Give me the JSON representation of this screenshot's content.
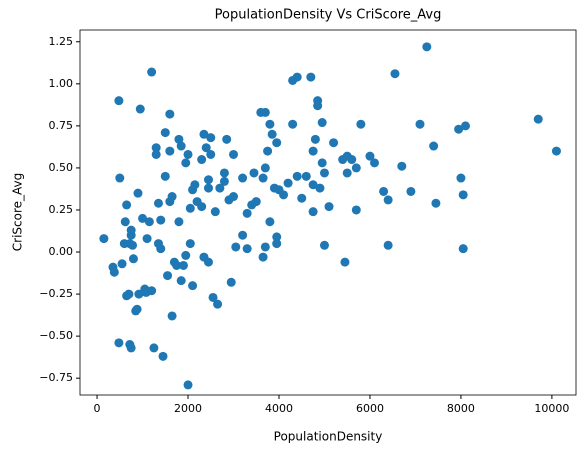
{
  "chart_data": {
    "type": "scatter",
    "title": "PopulationDensity Vs CriScore_Avg",
    "x_label": "PopulationDensity",
    "y_label": "CriScore_Avg",
    "color": "#1f77b4",
    "xlim": [
      -375,
      10530
    ],
    "ylim": [
      -0.85,
      1.32
    ],
    "xticks": [
      0,
      2000,
      4000,
      6000,
      8000,
      10000
    ],
    "yticks": [
      {
        "value": -0.75,
        "label": "−0.75"
      },
      {
        "value": -0.5,
        "label": "−0.50"
      },
      {
        "value": -0.25,
        "label": "−0.25"
      },
      {
        "value": 0,
        "label": "0.00"
      },
      {
        "value": 0.25,
        "label": "0.25"
      },
      {
        "value": 0.5,
        "label": "0.50"
      },
      {
        "value": 0.75,
        "label": "0.75"
      },
      {
        "value": 1,
        "label": "1.00"
      },
      {
        "value": 1.25,
        "label": "1.25"
      }
    ],
    "x": [
      150,
      350,
      380,
      480,
      500,
      480,
      550,
      600,
      620,
      650,
      650,
      700,
      720,
      750,
      750,
      780,
      720,
      750,
      800,
      850,
      880,
      900,
      920,
      950,
      1000,
      1050,
      1080,
      1100,
      1150,
      1200,
      1200,
      1250,
      1300,
      1300,
      1350,
      1350,
      1400,
      1400,
      1450,
      1500,
      1500,
      1550,
      1600,
      1600,
      1600,
      1650,
      1650,
      1700,
      1750,
      1800,
      1800,
      1850,
      1850,
      1900,
      1950,
      1950,
      2000,
      2000,
      2050,
      2050,
      2100,
      2100,
      2150,
      2200,
      2300,
      2300,
      2350,
      2350,
      2400,
      2450,
      2450,
      2450,
      2500,
      2500,
      2550,
      2600,
      2650,
      2700,
      2800,
      2800,
      2850,
      2900,
      2950,
      3000,
      3000,
      3050,
      3200,
      3200,
      3300,
      3300,
      3400,
      3450,
      3500,
      3600,
      3650,
      3650,
      3700,
      3700,
      3700,
      3750,
      3800,
      3800,
      3850,
      3900,
      3950,
      3950,
      3950,
      4000,
      4100,
      4200,
      4300,
      4300,
      4400,
      4400,
      4500,
      4600,
      4700,
      4750,
      4750,
      4750,
      4800,
      4850,
      4850,
      4900,
      4950,
      4950,
      5000,
      5000,
      5100,
      5200,
      5400,
      5450,
      5500,
      5500,
      5600,
      5700,
      5700,
      5800,
      6000,
      6100,
      6300,
      6400,
      6400,
      6550,
      6700,
      6900,
      7100,
      7250,
      7400,
      7450,
      7950,
      8000,
      8050,
      8050,
      8100,
      9700,
      10100
    ],
    "values": [
      0.08,
      -0.09,
      -0.12,
      0.9,
      0.44,
      -0.54,
      -0.07,
      0.05,
      0.18,
      0.28,
      -0.26,
      -0.25,
      0.05,
      0.1,
      0.13,
      0.04,
      -0.55,
      -0.57,
      -0.04,
      -0.35,
      -0.34,
      0.35,
      -0.25,
      0.85,
      0.2,
      -0.22,
      -0.24,
      0.08,
      0.18,
      1.07,
      -0.23,
      -0.57,
      0.62,
      0.58,
      0.05,
      0.29,
      0.19,
      0.02,
      -0.62,
      0.45,
      0.71,
      -0.14,
      0.82,
      0.6,
      0.3,
      -0.38,
      0.33,
      -0.06,
      -0.08,
      0.18,
      0.67,
      0.63,
      -0.17,
      -0.08,
      0.53,
      -0.02,
      -0.79,
      0.58,
      0.26,
      0.05,
      -0.2,
      0.37,
      0.4,
      0.3,
      0.27,
      0.55,
      0.7,
      -0.03,
      0.62,
      0.38,
      0.43,
      -0.06,
      0.58,
      0.68,
      -0.27,
      0.24,
      -0.31,
      0.38,
      0.47,
      0.42,
      0.67,
      0.31,
      -0.18,
      0.33,
      0.58,
      0.03,
      0.44,
      0.1,
      0.23,
      0.02,
      0.28,
      0.47,
      0.3,
      0.83,
      -0.03,
      0.44,
      0.83,
      0.5,
      0.03,
      0.6,
      0.76,
      0.18,
      0.7,
      0.38,
      0.09,
      0.05,
      0.65,
      0.37,
      0.34,
      0.41,
      1.02,
      0.76,
      1.04,
      0.45,
      0.32,
      0.45,
      1.04,
      0.24,
      0.6,
      0.4,
      0.67,
      0.9,
      0.87,
      0.38,
      0.77,
      0.53,
      0.04,
      0.47,
      0.27,
      0.65,
      0.55,
      -0.06,
      0.57,
      0.47,
      0.55,
      0.25,
      0.5,
      0.76,
      0.57,
      0.53,
      0.36,
      0.31,
      0.04,
      1.06,
      0.51,
      0.36,
      0.76,
      1.22,
      0.63,
      0.29,
      0.73,
      0.44,
      0.02,
      0.34,
      0.75,
      0.79,
      0.6
    ]
  }
}
